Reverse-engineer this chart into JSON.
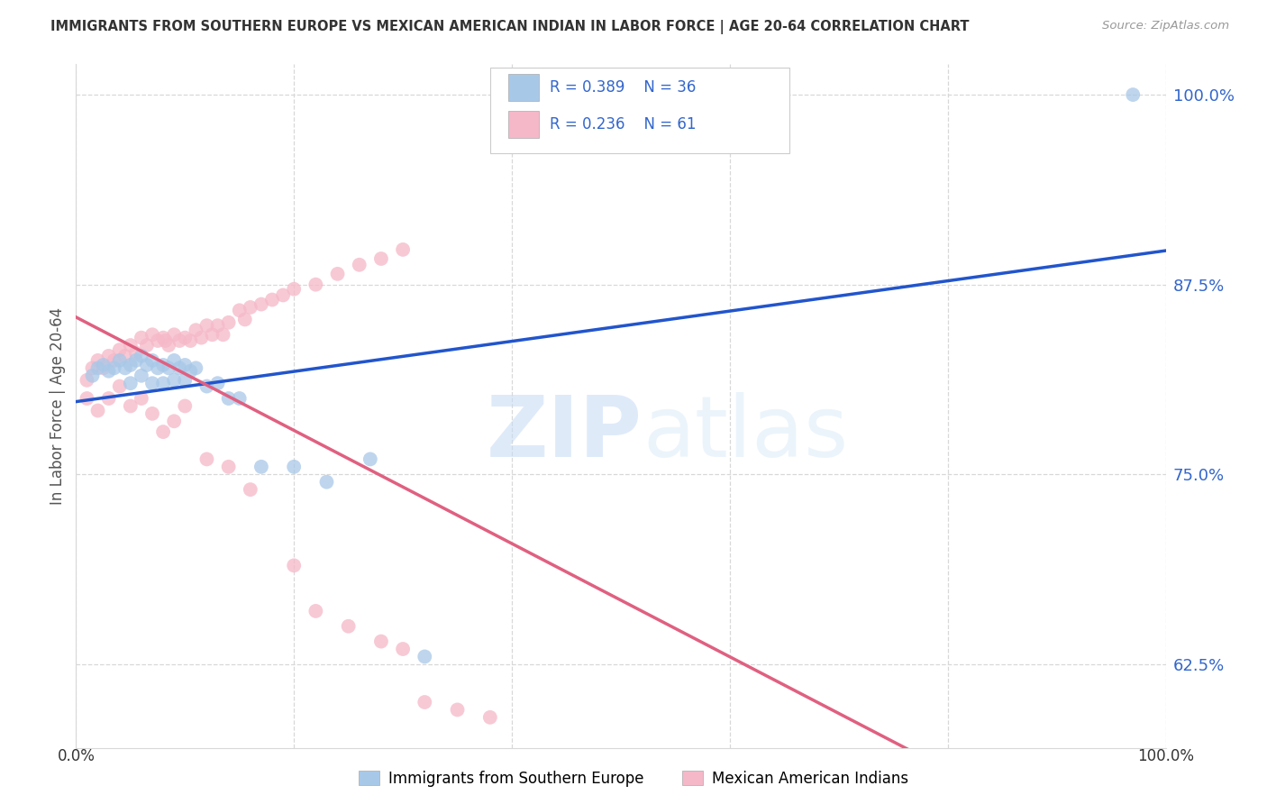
{
  "title": "IMMIGRANTS FROM SOUTHERN EUROPE VS MEXICAN AMERICAN INDIAN IN LABOR FORCE | AGE 20-64 CORRELATION CHART",
  "source": "Source: ZipAtlas.com",
  "ylabel": "In Labor Force | Age 20-64",
  "xlim": [
    0.0,
    1.0
  ],
  "ylim": [
    0.57,
    1.02
  ],
  "yticks": [
    0.625,
    0.75,
    0.875,
    1.0
  ],
  "ytick_labels": [
    "62.5%",
    "75.0%",
    "87.5%",
    "100.0%"
  ],
  "xtick_labels": [
    "0.0%",
    "100.0%"
  ],
  "blue_R": "0.389",
  "blue_N": "36",
  "pink_R": "0.236",
  "pink_N": "61",
  "blue_color": "#a8c8e8",
  "pink_color": "#f5b8c8",
  "blue_line_color": "#2255cc",
  "pink_line_color": "#e06080",
  "diagonal_color": "#e8a0b0",
  "legend_label_blue": "Immigrants from Southern Europe",
  "legend_label_pink": "Mexican American Indians",
  "blue_x": [
    0.015,
    0.02,
    0.025,
    0.03,
    0.035,
    0.04,
    0.045,
    0.05,
    0.05,
    0.055,
    0.06,
    0.06,
    0.065,
    0.07,
    0.07,
    0.075,
    0.08,
    0.08,
    0.085,
    0.09,
    0.09,
    0.095,
    0.1,
    0.1,
    0.105,
    0.11,
    0.12,
    0.13,
    0.14,
    0.15,
    0.17,
    0.2,
    0.23,
    0.27,
    0.32,
    0.97
  ],
  "blue_y": [
    0.815,
    0.82,
    0.822,
    0.818,
    0.82,
    0.825,
    0.82,
    0.822,
    0.81,
    0.825,
    0.828,
    0.815,
    0.822,
    0.825,
    0.81,
    0.82,
    0.822,
    0.81,
    0.82,
    0.825,
    0.812,
    0.82,
    0.822,
    0.812,
    0.818,
    0.82,
    0.808,
    0.81,
    0.8,
    0.8,
    0.755,
    0.755,
    0.745,
    0.76,
    0.63,
    1.0
  ],
  "pink_x": [
    0.01,
    0.015,
    0.02,
    0.025,
    0.03,
    0.035,
    0.04,
    0.045,
    0.05,
    0.055,
    0.06,
    0.065,
    0.07,
    0.075,
    0.08,
    0.082,
    0.085,
    0.09,
    0.095,
    0.1,
    0.105,
    0.11,
    0.115,
    0.12,
    0.125,
    0.13,
    0.135,
    0.14,
    0.15,
    0.155,
    0.16,
    0.17,
    0.18,
    0.19,
    0.2,
    0.22,
    0.24,
    0.26,
    0.28,
    0.3,
    0.01,
    0.02,
    0.03,
    0.04,
    0.05,
    0.06,
    0.07,
    0.08,
    0.09,
    0.1,
    0.12,
    0.14,
    0.16,
    0.2,
    0.22,
    0.25,
    0.28,
    0.3,
    0.32,
    0.35,
    0.38
  ],
  "pink_y": [
    0.812,
    0.82,
    0.825,
    0.82,
    0.828,
    0.825,
    0.832,
    0.828,
    0.835,
    0.83,
    0.84,
    0.835,
    0.842,
    0.838,
    0.84,
    0.838,
    0.835,
    0.842,
    0.838,
    0.84,
    0.838,
    0.845,
    0.84,
    0.848,
    0.842,
    0.848,
    0.842,
    0.85,
    0.858,
    0.852,
    0.86,
    0.862,
    0.865,
    0.868,
    0.872,
    0.875,
    0.882,
    0.888,
    0.892,
    0.898,
    0.8,
    0.792,
    0.8,
    0.808,
    0.795,
    0.8,
    0.79,
    0.778,
    0.785,
    0.795,
    0.76,
    0.755,
    0.74,
    0.69,
    0.66,
    0.65,
    0.64,
    0.635,
    0.6,
    0.595,
    0.59
  ],
  "watermark_zip": "ZIP",
  "watermark_atlas": "atlas",
  "background_color": "#ffffff",
  "grid_color": "#d8d8d8",
  "tick_color": "#3366cc",
  "axis_label_color": "#555555"
}
